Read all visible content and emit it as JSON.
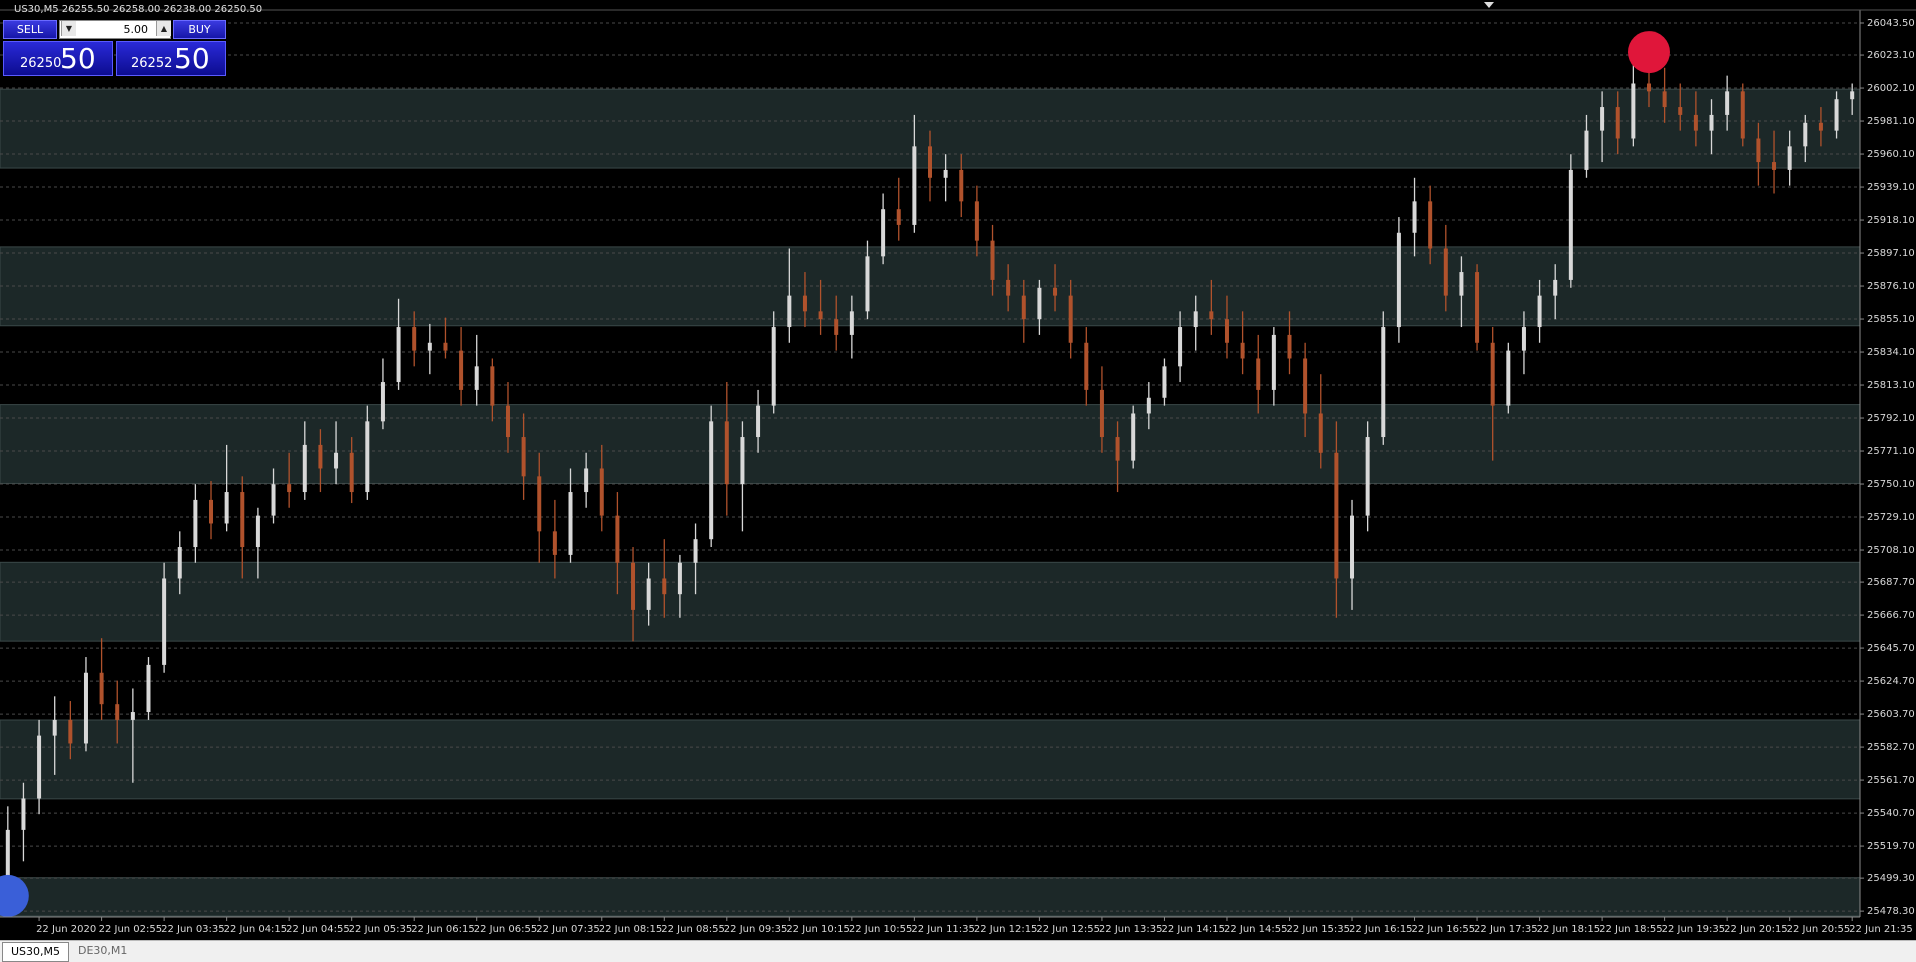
{
  "header": "US30,M5  26255.50 26258.00 26238.00 26250.50",
  "trade_panel": {
    "sell": "SELL",
    "buy": "BUY",
    "volume": "5.00",
    "bid_main": "26250",
    "bid_pips": "50",
    "ask_main": "26252",
    "ask_pips": "50"
  },
  "tabs": [
    "US30,M5",
    "DE30,M1"
  ],
  "chart_data": {
    "type": "candlestick",
    "up_color": "#d8d8d8",
    "down_color": "#b0522c",
    "high_marker_color": "#e0163a",
    "low_marker_color": "#3a5fd8",
    "grid": true,
    "ylim": [
      25475.2,
      26050.5
    ],
    "yticks": [
      {
        "value": 26043.5,
        "label": "26043.50"
      },
      {
        "value": 26023.1,
        "label": "26023.10"
      },
      {
        "value": 26002.1,
        "label": "26002.10"
      },
      {
        "value": 25981.1,
        "label": "25981.10"
      },
      {
        "value": 25960.1,
        "label": "25960.10"
      },
      {
        "value": 25939.1,
        "label": "25939.10"
      },
      {
        "value": 25918.1,
        "label": "25918.10"
      },
      {
        "value": 25897.1,
        "label": "25897.10"
      },
      {
        "value": 25876.1,
        "label": "25876.10"
      },
      {
        "value": 25855.1,
        "label": "25855.10"
      },
      {
        "value": 25834.1,
        "label": "25834.10"
      },
      {
        "value": 25813.1,
        "label": "25813.10"
      },
      {
        "value": 25792.1,
        "label": "25792.10"
      },
      {
        "value": 25771.1,
        "label": "25771.10"
      },
      {
        "value": 25750.1,
        "label": "25750.10"
      },
      {
        "value": 25729.1,
        "label": "25729.10"
      },
      {
        "value": 25708.1,
        "label": "25708.10"
      },
      {
        "value": 25687.7,
        "label": "25687.70"
      },
      {
        "value": 25666.7,
        "label": "25666.70"
      },
      {
        "value": 25645.7,
        "label": "25645.70"
      },
      {
        "value": 25624.7,
        "label": "25624.70"
      },
      {
        "value": 25603.7,
        "label": "25603.70"
      },
      {
        "value": 25582.7,
        "label": "25582.70"
      },
      {
        "value": 25561.7,
        "label": "25561.70"
      },
      {
        "value": 25540.7,
        "label": "25540.70"
      },
      {
        "value": 25519.7,
        "label": "25519.70"
      },
      {
        "value": 25499.3,
        "label": "25499.30"
      },
      {
        "value": 25478.3,
        "label": "25478.30"
      }
    ],
    "categories": [
      null,
      null,
      "22 Jun 2020",
      null,
      null,
      null,
      "22 Jun 02:55",
      null,
      null,
      null,
      "22 Jun 03:35",
      null,
      null,
      null,
      "22 Jun 04:15",
      null,
      null,
      null,
      "22 Jun 04:55",
      null,
      null,
      null,
      "22 Jun 05:35",
      null,
      null,
      null,
      "22 Jun 06:15",
      null,
      null,
      null,
      "22 Jun 06:55",
      null,
      null,
      null,
      "22 Jun 07:35",
      null,
      null,
      null,
      "22 Jun 08:15",
      null,
      null,
      null,
      "22 Jun 08:55",
      null,
      null,
      null,
      "22 Jun 09:35",
      null,
      null,
      null,
      "22 Jun 10:15",
      null,
      null,
      null,
      "22 Jun 10:55",
      null,
      null,
      null,
      "22 Jun 11:35",
      null,
      null,
      null,
      "22 Jun 12:15",
      null,
      null,
      null,
      "22 Jun 12:55",
      null,
      null,
      null,
      "22 Jun 13:35",
      null,
      null,
      null,
      "22 Jun 14:15",
      null,
      null,
      null,
      "22 Jun 14:55",
      null,
      null,
      null,
      "22 Jun 15:35",
      null,
      null,
      null,
      "22 Jun 16:15",
      null,
      null,
      null,
      "22 Jun 16:55",
      null,
      null,
      null,
      "22 Jun 17:35",
      null,
      null,
      null,
      "22 Jun 18:15",
      null,
      null,
      null,
      "22 Jun 18:55",
      null,
      null,
      null,
      "22 Jun 19:35",
      null,
      null,
      null,
      "22 Jun 20:15",
      null,
      null,
      null,
      "22 Jun 20:55",
      null,
      null,
      null,
      "22 Jun 21:35"
    ],
    "candles": [
      [
        25500,
        25545,
        25488,
        25530
      ],
      [
        25530,
        25560,
        25510,
        25550
      ],
      [
        25550,
        25600,
        25540,
        25590
      ],
      [
        25590,
        25615,
        25565,
        25600
      ],
      [
        25600,
        25612,
        25575,
        25585
      ],
      [
        25585,
        25640,
        25580,
        25630
      ],
      [
        25630,
        25652,
        25600,
        25610
      ],
      [
        25610,
        25625,
        25585,
        25600
      ],
      [
        25600,
        25620,
        25560,
        25605
      ],
      [
        25605,
        25640,
        25600,
        25635
      ],
      [
        25635,
        25700,
        25630,
        25690
      ],
      [
        25690,
        25720,
        25680,
        25710
      ],
      [
        25710,
        25750,
        25700,
        25740
      ],
      [
        25740,
        25752,
        25715,
        25725
      ],
      [
        25725,
        25775,
        25720,
        25745
      ],
      [
        25745,
        25755,
        25690,
        25710
      ],
      [
        25710,
        25735,
        25690,
        25730
      ],
      [
        25730,
        25760,
        25725,
        25750
      ],
      [
        25750,
        25770,
        25735,
        25745
      ],
      [
        25745,
        25790,
        25740,
        25775
      ],
      [
        25775,
        25785,
        25745,
        25760
      ],
      [
        25760,
        25790,
        25750,
        25770
      ],
      [
        25770,
        25780,
        25738,
        25745
      ],
      [
        25745,
        25800,
        25740,
        25790
      ],
      [
        25790,
        25830,
        25785,
        25815
      ],
      [
        25815,
        25868,
        25810,
        25850
      ],
      [
        25850,
        25860,
        25825,
        25835
      ],
      [
        25835,
        25852,
        25820,
        25840
      ],
      [
        25840,
        25856,
        25830,
        25835
      ],
      [
        25835,
        25850,
        25800,
        25810
      ],
      [
        25810,
        25845,
        25800,
        25825
      ],
      [
        25825,
        25830,
        25790,
        25800
      ],
      [
        25800,
        25815,
        25770,
        25780
      ],
      [
        25780,
        25795,
        25740,
        25755
      ],
      [
        25755,
        25770,
        25700,
        25720
      ],
      [
        25720,
        25740,
        25690,
        25705
      ],
      [
        25705,
        25760,
        25700,
        25745
      ],
      [
        25745,
        25770,
        25735,
        25760
      ],
      [
        25760,
        25775,
        25720,
        25730
      ],
      [
        25730,
        25745,
        25680,
        25700
      ],
      [
        25700,
        25710,
        25650,
        25670
      ],
      [
        25670,
        25700,
        25660,
        25690
      ],
      [
        25690,
        25715,
        25665,
        25680
      ],
      [
        25680,
        25705,
        25665,
        25700
      ],
      [
        25700,
        25725,
        25680,
        25715
      ],
      [
        25715,
        25800,
        25710,
        25790
      ],
      [
        25790,
        25815,
        25730,
        25750
      ],
      [
        25750,
        25790,
        25720,
        25780
      ],
      [
        25780,
        25810,
        25770,
        25800
      ],
      [
        25800,
        25860,
        25795,
        25850
      ],
      [
        25850,
        25900,
        25840,
        25870
      ],
      [
        25870,
        25885,
        25850,
        25860
      ],
      [
        25860,
        25880,
        25845,
        25855
      ],
      [
        25855,
        25870,
        25835,
        25845
      ],
      [
        25845,
        25870,
        25830,
        25860
      ],
      [
        25860,
        25905,
        25855,
        25895
      ],
      [
        25895,
        25935,
        25890,
        25925
      ],
      [
        25925,
        25945,
        25905,
        25915
      ],
      [
        25915,
        25985,
        25910,
        25965
      ],
      [
        25965,
        25975,
        25930,
        25945
      ],
      [
        25945,
        25960,
        25930,
        25950
      ],
      [
        25950,
        25960,
        25920,
        25930
      ],
      [
        25930,
        25940,
        25895,
        25905
      ],
      [
        25905,
        25915,
        25870,
        25880
      ],
      [
        25880,
        25890,
        25860,
        25870
      ],
      [
        25870,
        25880,
        25840,
        25855
      ],
      [
        25855,
        25880,
        25845,
        25875
      ],
      [
        25875,
        25890,
        25860,
        25870
      ],
      [
        25870,
        25880,
        25830,
        25840
      ],
      [
        25840,
        25850,
        25800,
        25810
      ],
      [
        25810,
        25825,
        25770,
        25780
      ],
      [
        25780,
        25790,
        25745,
        25765
      ],
      [
        25765,
        25800,
        25760,
        25795
      ],
      [
        25795,
        25815,
        25785,
        25805
      ],
      [
        25805,
        25830,
        25800,
        25825
      ],
      [
        25825,
        25860,
        25815,
        25850
      ],
      [
        25850,
        25870,
        25835,
        25860
      ],
      [
        25860,
        25880,
        25845,
        25855
      ],
      [
        25855,
        25870,
        25830,
        25840
      ],
      [
        25840,
        25860,
        25820,
        25830
      ],
      [
        25830,
        25845,
        25795,
        25810
      ],
      [
        25810,
        25850,
        25800,
        25845
      ],
      [
        25845,
        25860,
        25820,
        25830
      ],
      [
        25830,
        25840,
        25780,
        25795
      ],
      [
        25795,
        25820,
        25760,
        25770
      ],
      [
        25770,
        25790,
        25665,
        25690
      ],
      [
        25690,
        25740,
        25670,
        25730
      ],
      [
        25730,
        25790,
        25720,
        25780
      ],
      [
        25780,
        25860,
        25775,
        25850
      ],
      [
        25850,
        25920,
        25840,
        25910
      ],
      [
        25910,
        25945,
        25895,
        25930
      ],
      [
        25930,
        25940,
        25890,
        25900
      ],
      [
        25900,
        25915,
        25860,
        25870
      ],
      [
        25870,
        25895,
        25850,
        25885
      ],
      [
        25885,
        25890,
        25835,
        25840
      ],
      [
        25840,
        25850,
        25765,
        25800
      ],
      [
        25800,
        25840,
        25795,
        25835
      ],
      [
        25835,
        25860,
        25820,
        25850
      ],
      [
        25850,
        25880,
        25840,
        25870
      ],
      [
        25870,
        25890,
        25855,
        25880
      ],
      [
        25880,
        25960,
        25875,
        25950
      ],
      [
        25950,
        25985,
        25945,
        25975
      ],
      [
        25975,
        26000,
        25955,
        25990
      ],
      [
        25990,
        26000,
        25960,
        25970
      ],
      [
        25970,
        26020,
        25965,
        26005
      ],
      [
        26005,
        26025,
        25990,
        26000
      ],
      [
        26000,
        26015,
        25980,
        25990
      ],
      [
        25990,
        26005,
        25975,
        25985
      ],
      [
        25985,
        26000,
        25965,
        25975
      ],
      [
        25975,
        25995,
        25960,
        25985
      ],
      [
        25985,
        26010,
        25975,
        26000
      ],
      [
        26000,
        26005,
        25965,
        25970
      ],
      [
        25970,
        25980,
        25940,
        25955
      ],
      [
        25955,
        25975,
        25935,
        25950
      ],
      [
        25950,
        25975,
        25940,
        25965
      ],
      [
        25965,
        25985,
        25955,
        25980
      ],
      [
        25980,
        25990,
        25965,
        25975
      ],
      [
        25975,
        26000,
        25970,
        25995
      ],
      [
        25995,
        26005,
        25985,
        26000
      ]
    ]
  }
}
